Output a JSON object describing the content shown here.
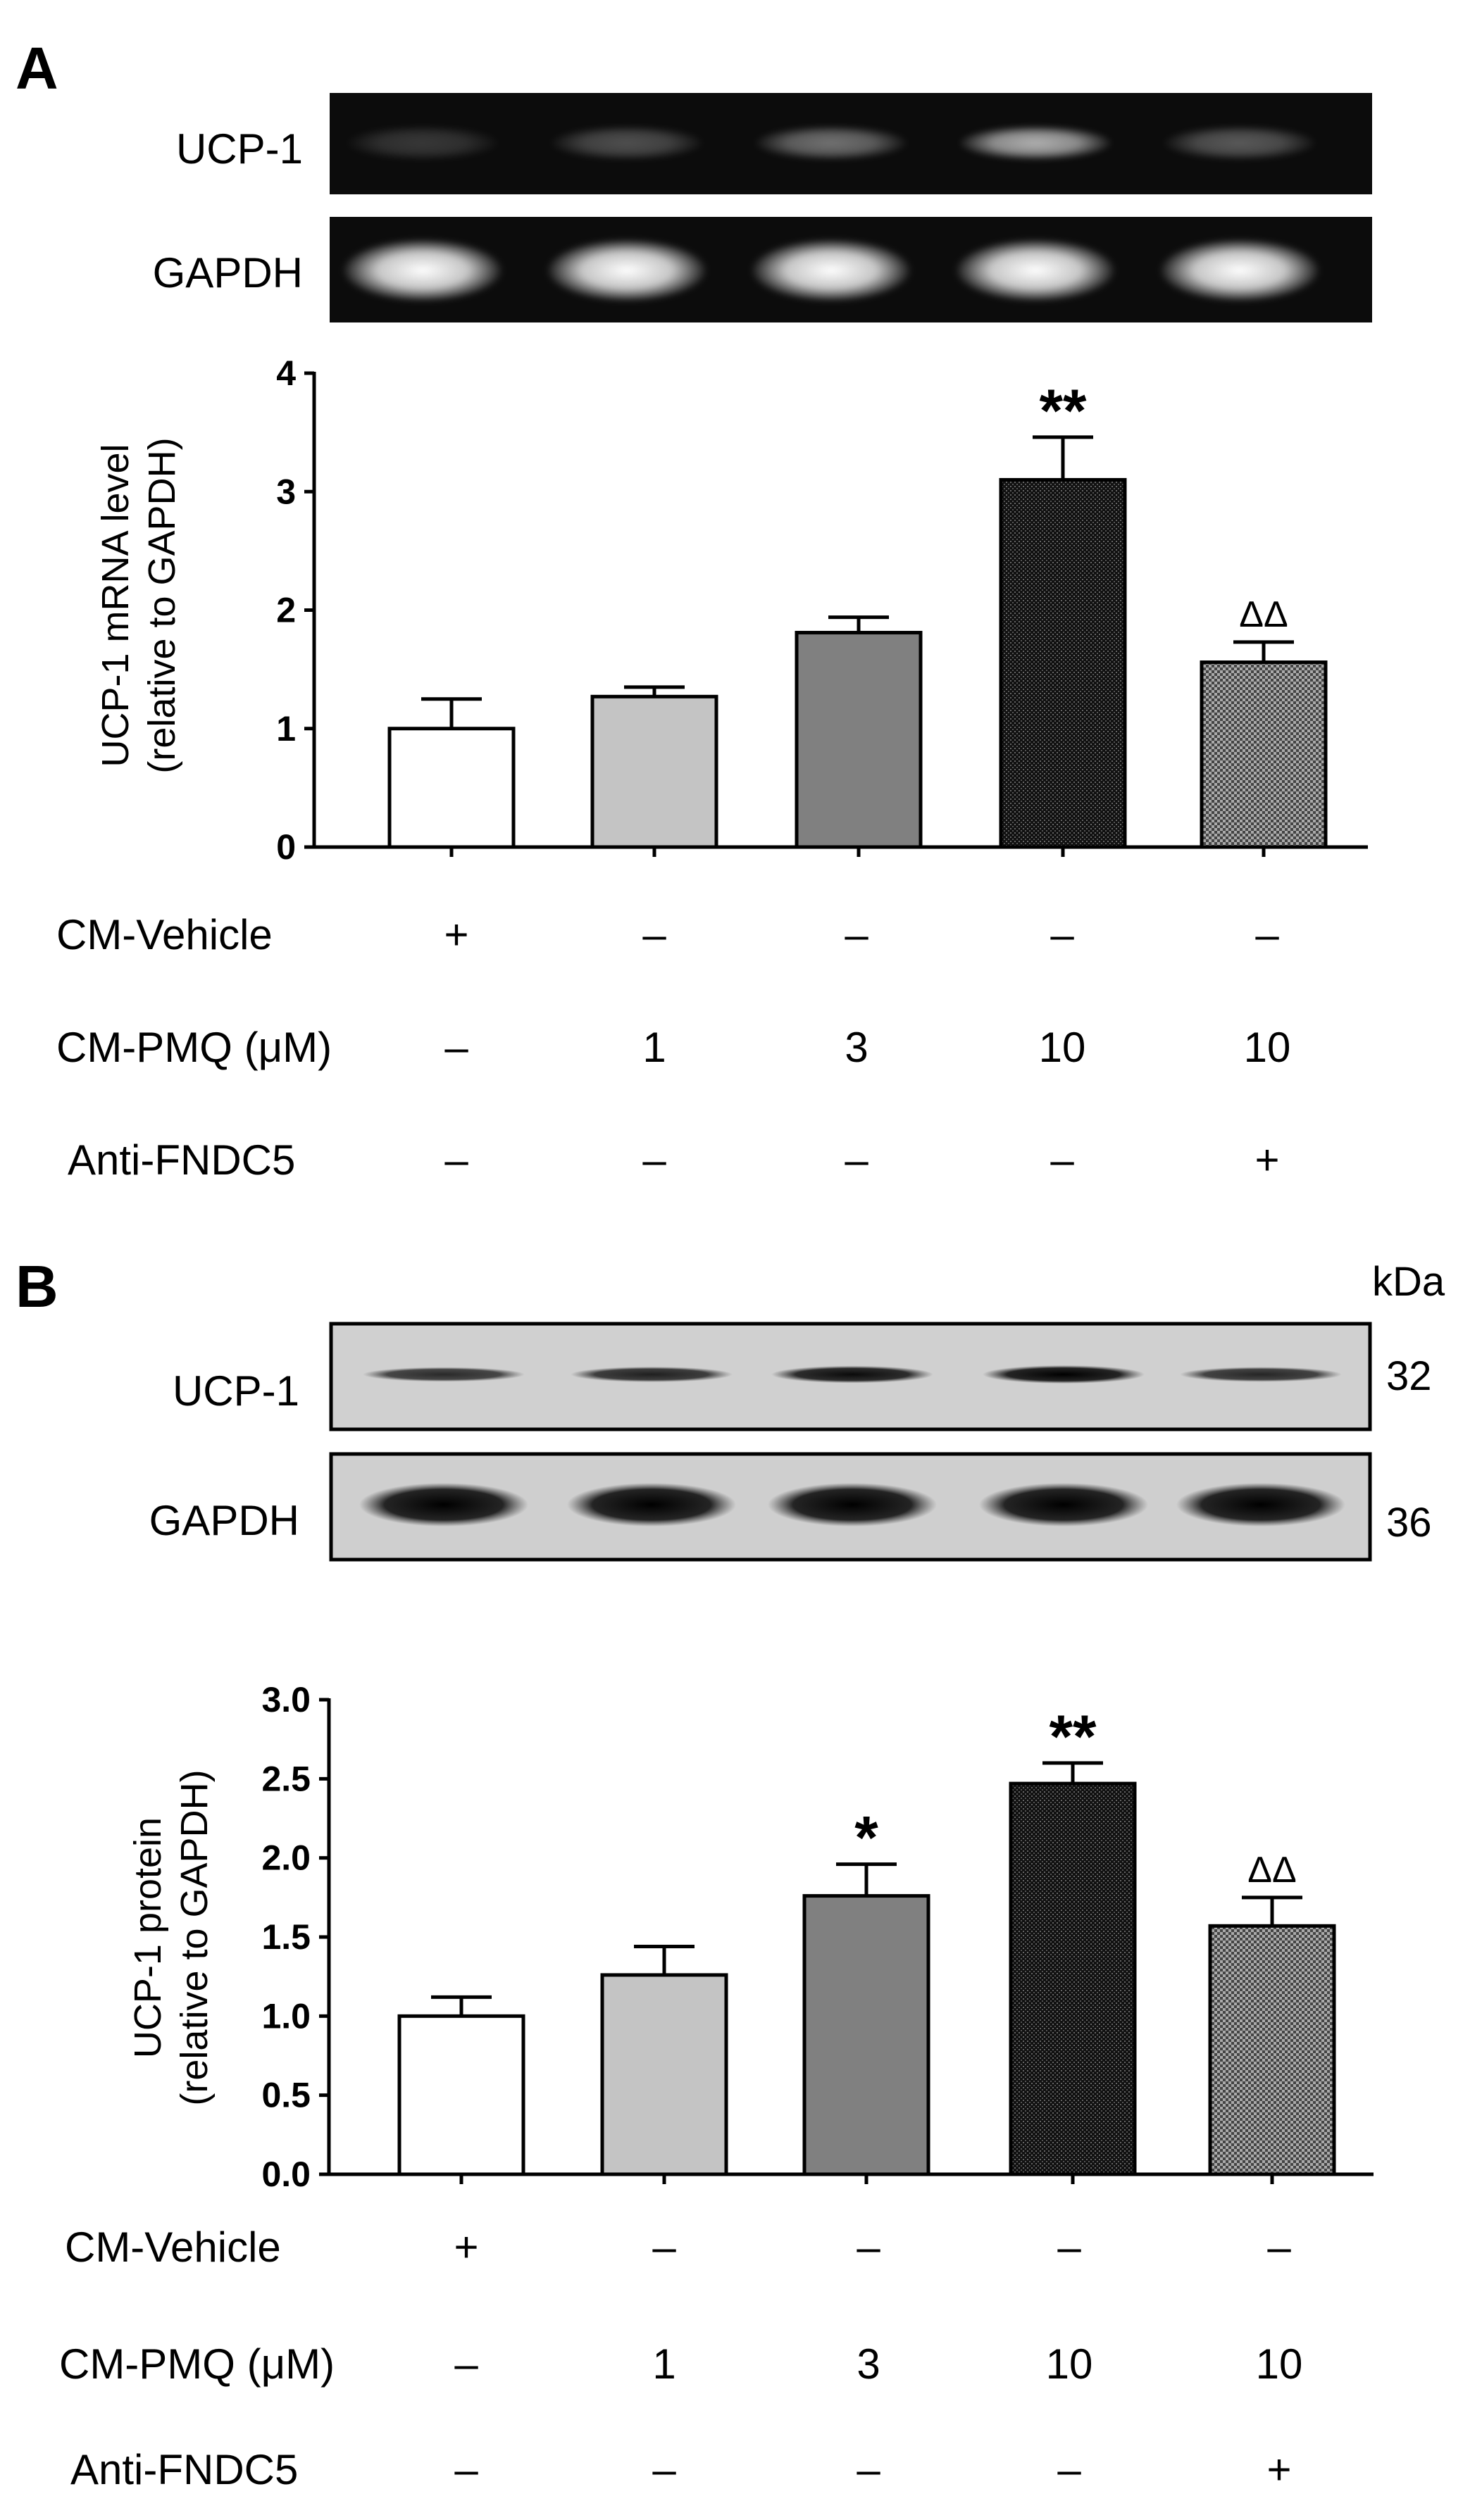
{
  "panels": [
    {
      "letter": "A",
      "blot": {
        "style": "gel",
        "kda_header": "",
        "rows": [
          {
            "label": "UCP-1",
            "kda": "",
            "intensity": [
              0.18,
              0.28,
              0.42,
              0.68,
              0.32
            ]
          },
          {
            "label": "GAPDH",
            "kda": "",
            "intensity": [
              1,
              1,
              1,
              1,
              1
            ]
          }
        ]
      },
      "chart_data": {
        "type": "bar",
        "categories": [
          "1",
          "2",
          "3",
          "4",
          "5"
        ],
        "values": [
          1.0,
          1.27,
          1.81,
          3.1,
          1.56
        ],
        "errors": [
          0.25,
          0.08,
          0.13,
          0.36,
          0.17
        ],
        "annotations": [
          "",
          "",
          "",
          "**",
          "ΔΔ"
        ],
        "fills": [
          "#ffffff",
          "#c4c4c4",
          "#808080",
          "#1e1e1e",
          "#8c8c8c"
        ],
        "patterns": [
          "none",
          "none",
          "none",
          "dense",
          "checker"
        ],
        "ylabel": [
          "UCP-1 mRNA level",
          "(relative to GAPDH)"
        ],
        "ylim": [
          0,
          4
        ],
        "yticks": [
          "0",
          "1",
          "2",
          "3",
          "4"
        ],
        "grid": false,
        "legend": "none"
      },
      "conditions": [
        {
          "label": "CM-Vehicle",
          "values": [
            "+",
            "–",
            "–",
            "–",
            "–"
          ]
        },
        {
          "label": "CM-PMQ (μM)",
          "values": [
            "–",
            "1",
            "3",
            "10",
            "10"
          ]
        },
        {
          "label": "Anti-FNDC5",
          "values": [
            "–",
            "–",
            "–",
            "–",
            "+"
          ]
        }
      ]
    },
    {
      "letter": "B",
      "blot": {
        "style": "western",
        "kda_header": "kDa",
        "rows": [
          {
            "label": "UCP-1",
            "kda": "32",
            "intensity": [
              0.8,
              0.85,
              0.95,
              1.0,
              0.82
            ]
          },
          {
            "label": "GAPDH",
            "kda": "36",
            "intensity": [
              1,
              1,
              1,
              1,
              1
            ]
          }
        ]
      },
      "chart_data": {
        "type": "bar",
        "categories": [
          "1",
          "2",
          "3",
          "4",
          "5"
        ],
        "values": [
          1.0,
          1.26,
          1.76,
          2.47,
          1.57
        ],
        "errors": [
          0.12,
          0.18,
          0.2,
          0.13,
          0.18
        ],
        "annotations": [
          "",
          "",
          "*",
          "**",
          "ΔΔ"
        ],
        "fills": [
          "#ffffff",
          "#c4c4c4",
          "#808080",
          "#1e1e1e",
          "#8c8c8c"
        ],
        "patterns": [
          "none",
          "none",
          "none",
          "dense",
          "checker"
        ],
        "ylabel": [
          "UCP-1 protein",
          "(relative to GAPDH)"
        ],
        "ylim": [
          0,
          3
        ],
        "yticks": [
          "0.0",
          "0.5",
          "1.0",
          "1.5",
          "2.0",
          "2.5",
          "3.0"
        ],
        "grid": false,
        "legend": "none"
      },
      "conditions": [
        {
          "label": "CM-Vehicle",
          "values": [
            "+",
            "–",
            "–",
            "–",
            "–"
          ]
        },
        {
          "label": "CM-PMQ (μM)",
          "values": [
            "–",
            "1",
            "3",
            "10",
            "10"
          ]
        },
        {
          "label": "Anti-FNDC5",
          "values": [
            "–",
            "–",
            "–",
            "–",
            "+"
          ]
        }
      ]
    }
  ]
}
